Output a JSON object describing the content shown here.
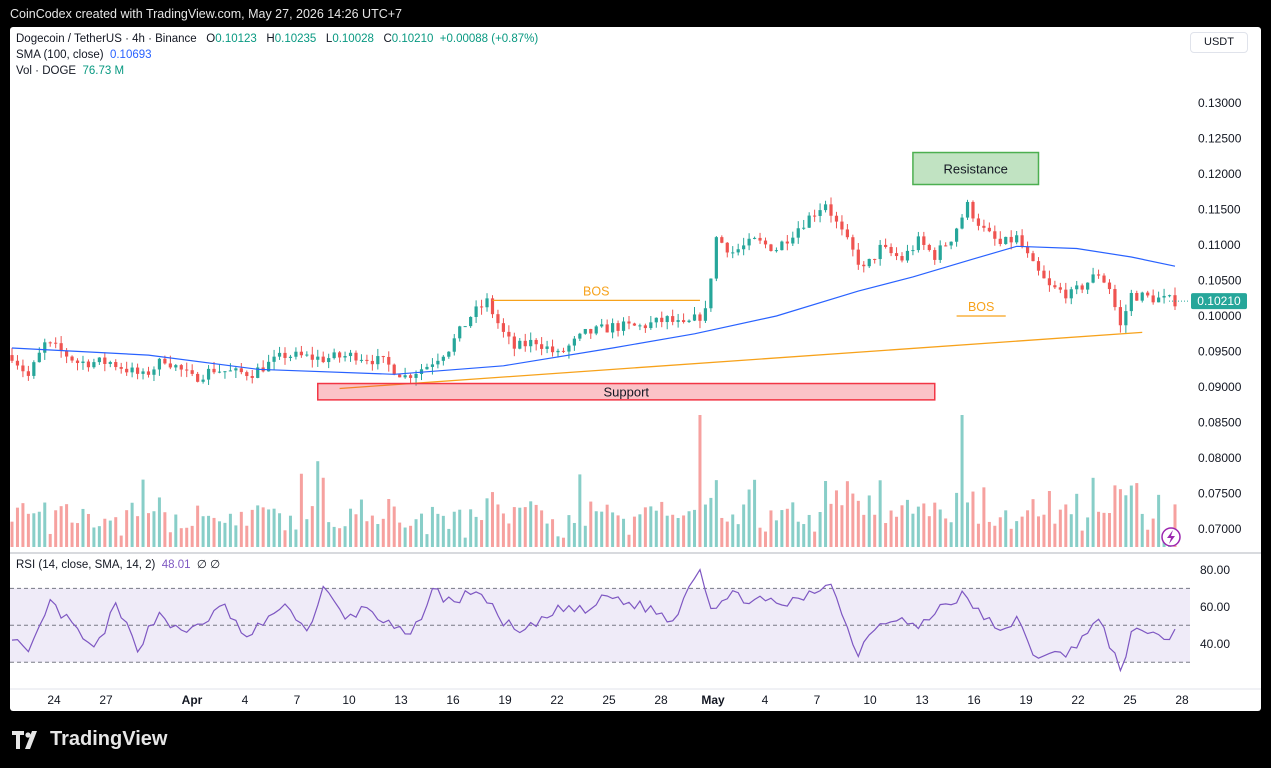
{
  "topbar": {
    "text": "CoinCodex created with TradingView.com, May 27, 2026 14:26 UTC+7"
  },
  "header": {
    "symbol": "Dogecoin / TetherUS · 4h · Binance",
    "o_label": "O",
    "o": "0.10123",
    "h_label": "H",
    "h": "0.10235",
    "l_label": "L",
    "l": "0.10028",
    "c_label": "C",
    "c": "0.10210",
    "change": "+0.00088 (+0.87%)",
    "sma_label": "SMA (100, close)",
    "sma_value": "0.10693",
    "vol_label": "Vol · DOGE",
    "vol_value": "76.73 M",
    "currency": "USDT"
  },
  "rsi_header": {
    "label": "RSI (14, close, SMA, 14, 2)",
    "value": "48.01",
    "extra": "∅ ∅"
  },
  "footer": {
    "brand": "TradingView"
  },
  "colors": {
    "up": "#26a69a",
    "down": "#ef5350",
    "sma": "#2962ff",
    "rsi": "#7e57c2",
    "annotation": "#f7a21b"
  },
  "chart_data": [
    {
      "type": "candlestick",
      "title": "Dogecoin / TetherUS · 4h · Binance",
      "ylim": [
        0.0675,
        0.1325
      ],
      "yticks": [
        "0.12500",
        "0.12000",
        "0.11500",
        "0.11000",
        "0.10500",
        "0.10000",
        "0.09500",
        "0.09000",
        "0.08500",
        "0.08000",
        "0.07500",
        "0.07000"
      ],
      "x_ticks": [
        "24",
        "27",
        "Apr",
        "4",
        "7",
        "10",
        "13",
        "16",
        "19",
        "22",
        "25",
        "28",
        "May",
        "4",
        "7",
        "10",
        "13",
        "16",
        "19",
        "22",
        "25",
        "28"
      ],
      "last_price": "0.10210",
      "price_path": [
        {
          "t": 0,
          "v": 0.0945
        },
        {
          "t": 3,
          "v": 0.0915
        },
        {
          "t": 6,
          "v": 0.096
        },
        {
          "t": 8,
          "v": 0.0955
        },
        {
          "t": 12,
          "v": 0.0935
        },
        {
          "t": 18,
          "v": 0.0935
        },
        {
          "t": 24,
          "v": 0.0915
        },
        {
          "t": 28,
          "v": 0.094
        },
        {
          "t": 33,
          "v": 0.0912
        },
        {
          "t": 37,
          "v": 0.0925
        },
        {
          "t": 41,
          "v": 0.092
        },
        {
          "t": 44,
          "v": 0.092
        },
        {
          "t": 50,
          "v": 0.0945
        },
        {
          "t": 57,
          "v": 0.094
        },
        {
          "t": 63,
          "v": 0.0945
        },
        {
          "t": 68,
          "v": 0.0935
        },
        {
          "t": 72,
          "v": 0.0915
        },
        {
          "t": 76,
          "v": 0.093
        },
        {
          "t": 80,
          "v": 0.0955
        },
        {
          "t": 84,
          "v": 0.1
        },
        {
          "t": 87,
          "v": 0.102
        },
        {
          "t": 90,
          "v": 0.0975
        },
        {
          "t": 92,
          "v": 0.0955
        },
        {
          "t": 96,
          "v": 0.0965
        },
        {
          "t": 100,
          "v": 0.0945
        },
        {
          "t": 105,
          "v": 0.0975
        },
        {
          "t": 110,
          "v": 0.0985
        },
        {
          "t": 115,
          "v": 0.0985
        },
        {
          "t": 120,
          "v": 0.0995
        },
        {
          "t": 123,
          "v": 0.0985
        },
        {
          "t": 127,
          "v": 0.1005
        },
        {
          "t": 129,
          "v": 0.111
        },
        {
          "t": 132,
          "v": 0.109
        },
        {
          "t": 136,
          "v": 0.1105
        },
        {
          "t": 140,
          "v": 0.1095
        },
        {
          "t": 144,
          "v": 0.1125
        },
        {
          "t": 149,
          "v": 0.116
        },
        {
          "t": 151,
          "v": 0.113
        },
        {
          "t": 154,
          "v": 0.109
        },
        {
          "t": 156,
          "v": 0.1065
        },
        {
          "t": 159,
          "v": 0.1095
        },
        {
          "t": 163,
          "v": 0.108
        },
        {
          "t": 166,
          "v": 0.1105
        },
        {
          "t": 169,
          "v": 0.1085
        },
        {
          "t": 172,
          "v": 0.111
        },
        {
          "t": 175,
          "v": 0.1155
        },
        {
          "t": 178,
          "v": 0.112
        },
        {
          "t": 181,
          "v": 0.11
        },
        {
          "t": 184,
          "v": 0.111
        },
        {
          "t": 187,
          "v": 0.107
        },
        {
          "t": 190,
          "v": 0.104
        },
        {
          "t": 194,
          "v": 0.103
        },
        {
          "t": 199,
          "v": 0.106
        },
        {
          "t": 201,
          "v": 0.104
        },
        {
          "t": 203,
          "v": 0.0985
        },
        {
          "t": 205,
          "v": 0.103
        },
        {
          "t": 209,
          "v": 0.1025
        },
        {
          "t": 213,
          "v": 0.1021
        }
      ],
      "sma_path": [
        {
          "t": 0,
          "v": 0.0955
        },
        {
          "t": 25,
          "v": 0.0945
        },
        {
          "t": 45,
          "v": 0.0925
        },
        {
          "t": 70,
          "v": 0.0918
        },
        {
          "t": 90,
          "v": 0.093
        },
        {
          "t": 110,
          "v": 0.0955
        },
        {
          "t": 125,
          "v": 0.0975
        },
        {
          "t": 140,
          "v": 0.1
        },
        {
          "t": 155,
          "v": 0.1035
        },
        {
          "t": 165,
          "v": 0.1055
        },
        {
          "t": 176,
          "v": 0.108
        },
        {
          "t": 184,
          "v": 0.1098
        },
        {
          "t": 195,
          "v": 0.1095
        },
        {
          "t": 205,
          "v": 0.1083
        },
        {
          "t": 213,
          "v": 0.107
        }
      ],
      "annotations": {
        "resistance": {
          "label": "Resistance",
          "y": [
            0.1185,
            0.123
          ],
          "t": [
            165,
            188
          ]
        },
        "support": {
          "label": "Support",
          "y": [
            0.0882,
            0.0905
          ],
          "t": [
            56,
            169
          ]
        },
        "bos": [
          {
            "label": "BOS",
            "y": 0.1022,
            "t": [
              88,
              126
            ]
          },
          {
            "label": "BOS",
            "y": 0.1,
            "t": [
              173,
              182
            ]
          }
        ],
        "trendline": {
          "y": [
            0.0898,
            0.0977
          ],
          "t": [
            60,
            207
          ]
        }
      }
    },
    {
      "type": "bar",
      "title": "Vol · DOGE",
      "highlights": [
        {
          "t": 126,
          "rel": 1.0
        },
        {
          "t": 174,
          "rel": 1.0
        },
        {
          "t": 56,
          "rel": 0.65
        },
        {
          "t": 104,
          "rel": 0.55
        },
        {
          "t": 149,
          "rel": 0.5
        }
      ]
    },
    {
      "type": "line",
      "title": "RSI (14, close, SMA, 14, 2)",
      "ylim": [
        22,
        87
      ],
      "yticks": [
        "80.00",
        "60.00",
        "40.00"
      ],
      "bands": [
        30,
        50,
        70
      ],
      "path": [
        {
          "t": 0,
          "v": 45
        },
        {
          "t": 3,
          "v": 33
        },
        {
          "t": 7,
          "v": 62
        },
        {
          "t": 11,
          "v": 50
        },
        {
          "t": 15,
          "v": 36
        },
        {
          "t": 19,
          "v": 60
        },
        {
          "t": 23,
          "v": 38
        },
        {
          "t": 27,
          "v": 57
        },
        {
          "t": 31,
          "v": 45
        },
        {
          "t": 35,
          "v": 52
        },
        {
          "t": 39,
          "v": 60
        },
        {
          "t": 43,
          "v": 42
        },
        {
          "t": 47,
          "v": 55
        },
        {
          "t": 51,
          "v": 60
        },
        {
          "t": 54,
          "v": 46
        },
        {
          "t": 57,
          "v": 70
        },
        {
          "t": 61,
          "v": 53
        },
        {
          "t": 65,
          "v": 60
        },
        {
          "t": 69,
          "v": 50
        },
        {
          "t": 73,
          "v": 43
        },
        {
          "t": 77,
          "v": 69
        },
        {
          "t": 81,
          "v": 62
        },
        {
          "t": 85,
          "v": 70
        },
        {
          "t": 89,
          "v": 55
        },
        {
          "t": 93,
          "v": 45
        },
        {
          "t": 97,
          "v": 52
        },
        {
          "t": 101,
          "v": 60
        },
        {
          "t": 105,
          "v": 57
        },
        {
          "t": 109,
          "v": 66
        },
        {
          "t": 113,
          "v": 62
        },
        {
          "t": 117,
          "v": 59
        },
        {
          "t": 121,
          "v": 52
        },
        {
          "t": 124,
          "v": 72
        },
        {
          "t": 126,
          "v": 82
        },
        {
          "t": 128,
          "v": 60
        },
        {
          "t": 132,
          "v": 66
        },
        {
          "t": 136,
          "v": 64
        },
        {
          "t": 140,
          "v": 61
        },
        {
          "t": 144,
          "v": 63
        },
        {
          "t": 148,
          "v": 70
        },
        {
          "t": 150,
          "v": 75
        },
        {
          "t": 152,
          "v": 55
        },
        {
          "t": 155,
          "v": 35
        },
        {
          "t": 158,
          "v": 50
        },
        {
          "t": 162,
          "v": 55
        },
        {
          "t": 166,
          "v": 48
        },
        {
          "t": 170,
          "v": 60
        },
        {
          "t": 174,
          "v": 66
        },
        {
          "t": 178,
          "v": 55
        },
        {
          "t": 181,
          "v": 45
        },
        {
          "t": 184,
          "v": 55
        },
        {
          "t": 187,
          "v": 32
        },
        {
          "t": 190,
          "v": 37
        },
        {
          "t": 193,
          "v": 32
        },
        {
          "t": 196,
          "v": 45
        },
        {
          "t": 199,
          "v": 52
        },
        {
          "t": 201,
          "v": 40
        },
        {
          "t": 203,
          "v": 26
        },
        {
          "t": 205,
          "v": 45
        },
        {
          "t": 209,
          "v": 47
        },
        {
          "t": 212,
          "v": 41
        },
        {
          "t": 213,
          "v": 48
        }
      ]
    }
  ]
}
